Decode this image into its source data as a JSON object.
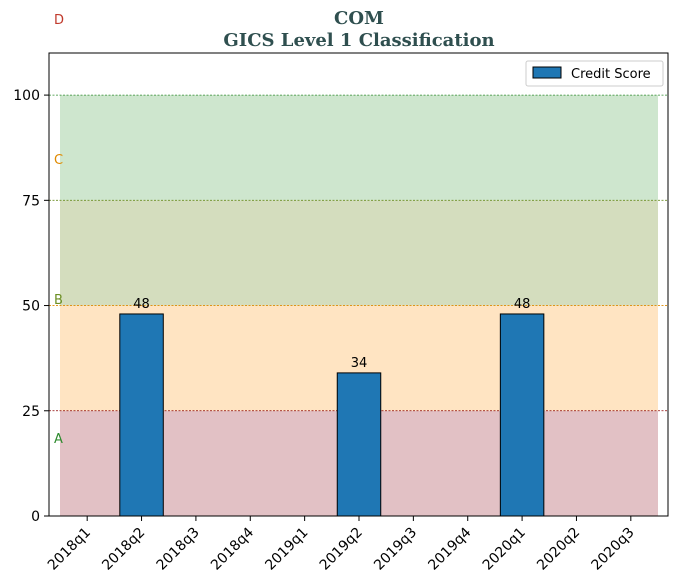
{
  "chart_data": {
    "type": "bar",
    "title": "COM",
    "subtitle": "GICS Level 1 Classification",
    "categories": [
      "2018q1",
      "2018q2",
      "2018q3",
      "2018q4",
      "2019q1",
      "2019q2",
      "2019q3",
      "2019q4",
      "2020q1",
      "2020q2",
      "2020q3"
    ],
    "series": [
      {
        "name": "Credit Score",
        "values": [
          null,
          48,
          null,
          null,
          null,
          34,
          null,
          null,
          48,
          null,
          null
        ],
        "color": "#1f77b4"
      }
    ],
    "ylim": [
      0,
      110
    ],
    "yticks": [
      0,
      25,
      50,
      75,
      100
    ],
    "grid": false,
    "legend": {
      "placement": "top-right"
    },
    "bands": [
      {
        "label": "A",
        "range": [
          0,
          25
        ],
        "fill": "#d5a6ad",
        "line": "#8b0000",
        "label_color": "#2e8b2e"
      },
      {
        "label": "B",
        "range": [
          25,
          50
        ],
        "fill": "#ffd8a8",
        "line": "#e08a00",
        "label_color": "#6b8e23"
      },
      {
        "label": "C",
        "range": [
          50,
          75
        ],
        "fill": "#c2cfa3",
        "line": "#6b8e23",
        "label_color": "#e08a00"
      },
      {
        "label": "D",
        "range": [
          75,
          100
        ],
        "fill": "#b9dcb9",
        "line": "#2e8b2e",
        "label_color": "#c0392b"
      }
    ]
  }
}
